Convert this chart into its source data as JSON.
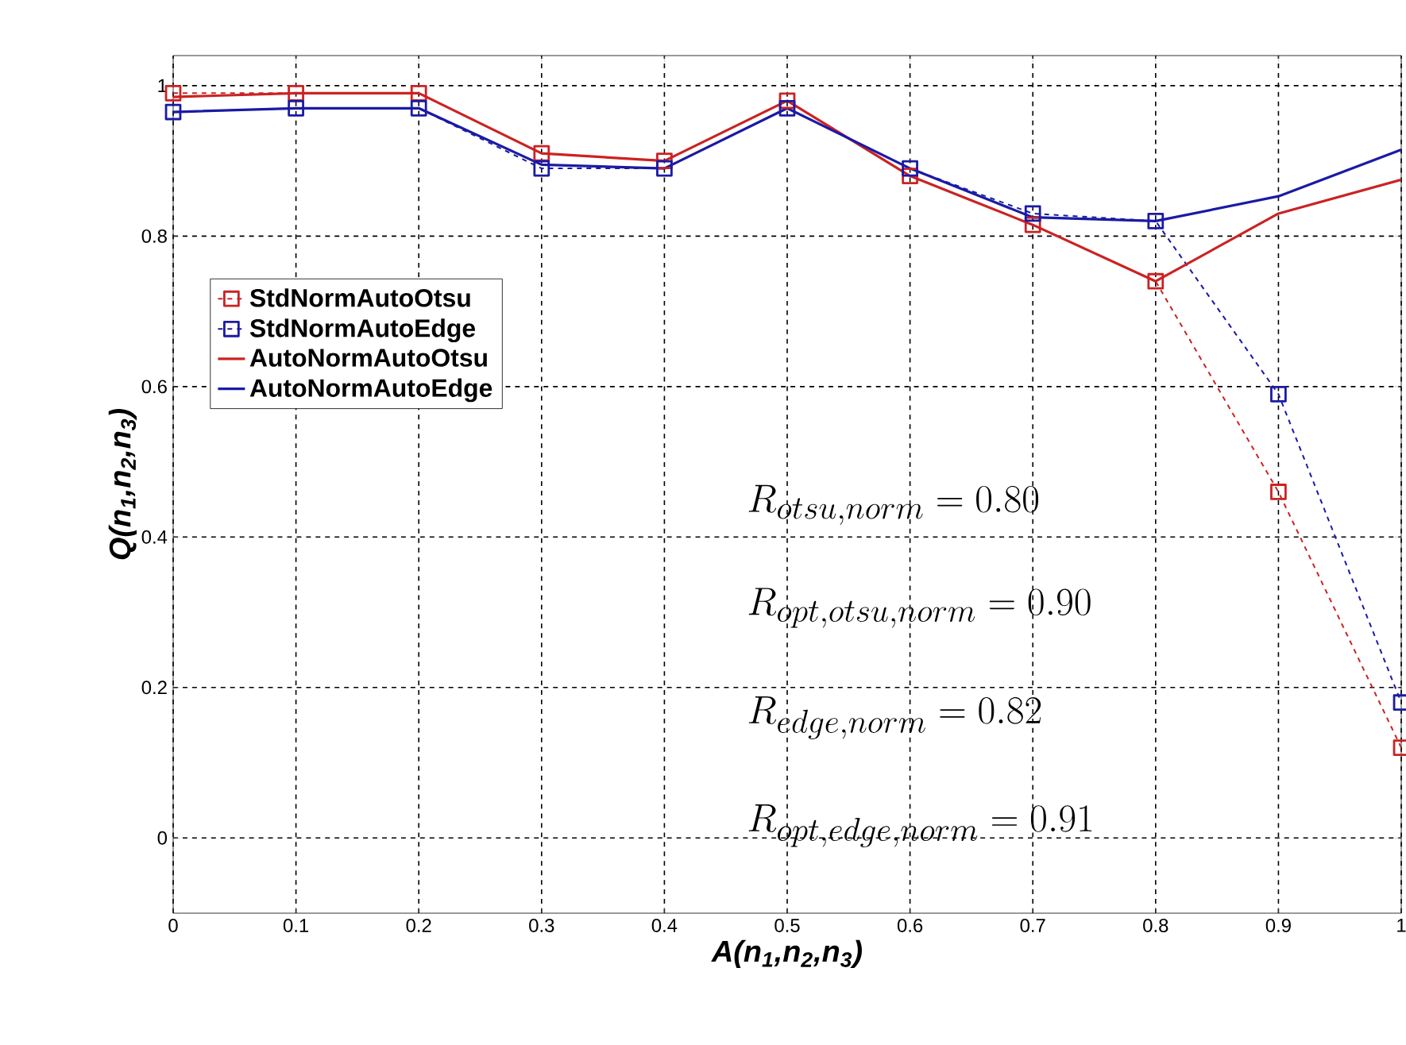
{
  "chart_data": {
    "type": "line",
    "xlabel": "A(n$_{1}$,n$_{2}$,n$_{3}$)",
    "ylabel": "Q(n$_{1}$,n$_{2}$,n$_{3}$)",
    "x": [
      0,
      0.1,
      0.2,
      0.3,
      0.4,
      0.5,
      0.6,
      0.7,
      0.8,
      0.9,
      1
    ],
    "xlim": [
      0,
      1
    ],
    "ylim": [
      -0.1,
      1.04
    ],
    "xticks": [
      0,
      0.1,
      0.2,
      0.3,
      0.4,
      0.5,
      0.6,
      0.7,
      0.8,
      0.9,
      1
    ],
    "yticks": [
      0,
      0.2,
      0.4,
      0.6,
      0.8,
      1
    ],
    "grid": true,
    "legend": "top left",
    "series": [
      {
        "name": "StdNormAutoOtsu",
        "color": "#cc2222",
        "marker": "square",
        "line_style": "dashed",
        "values": [
          0.99,
          0.99,
          0.99,
          0.91,
          0.9,
          0.98,
          0.88,
          0.815,
          0.74,
          0.46,
          0.12
        ]
      },
      {
        "name": "StdNormAutoEdge",
        "color": "#1a1aa6",
        "marker": "square",
        "line_style": "dashed",
        "values": [
          0.965,
          0.97,
          0.97,
          0.89,
          0.89,
          0.97,
          0.89,
          0.83,
          0.82,
          0.59,
          0.18
        ]
      },
      {
        "name": "AutoNormAutoOtsu",
        "color": "#cc2222",
        "marker": "none",
        "line_style": "solid",
        "values": [
          0.985,
          0.99,
          0.99,
          0.91,
          0.9,
          0.98,
          0.88,
          0.815,
          0.74,
          0.83,
          0.875
        ]
      },
      {
        "name": "AutoNormAutoEdge",
        "color": "#1a1aa6",
        "marker": "none",
        "line_style": "solid",
        "values": [
          0.965,
          0.97,
          0.97,
          0.895,
          0.89,
          0.97,
          0.89,
          0.825,
          0.82,
          0.853,
          0.915
        ]
      }
    ],
    "annotations": [
      "R_{otsu,norm} = 0.80",
      "R_{opt,otsu,norm} = 0.90",
      "R_{edge,norm} = 0.82",
      "R_{opt,edge,norm} = 0.91"
    ]
  }
}
